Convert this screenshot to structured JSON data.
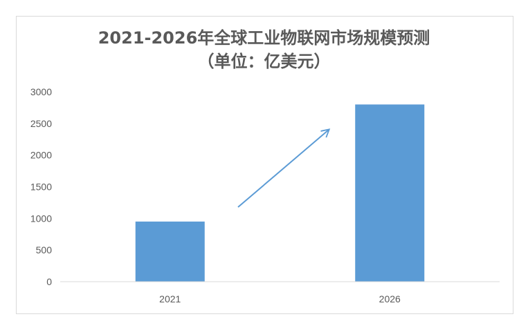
{
  "chart_data": {
    "type": "bar",
    "title": "2021-2026年全球工业物联网市场规模预测",
    "subtitle": "（单位：亿美元）",
    "categories": [
      "2021",
      "2026"
    ],
    "values": [
      950,
      2800
    ],
    "ylim": [
      0,
      3000
    ],
    "yticks": [
      "0",
      "500",
      "1000",
      "1500",
      "2000",
      "2500",
      "3000"
    ],
    "xlabel": "",
    "ylabel": "",
    "grid": false,
    "legend": "none",
    "annotation": "upward-arrow",
    "colors": {
      "bar": "#5b9bd5",
      "arrow": "#5b9bd5",
      "axis": "#d9d9d9",
      "text": "#595959"
    }
  }
}
